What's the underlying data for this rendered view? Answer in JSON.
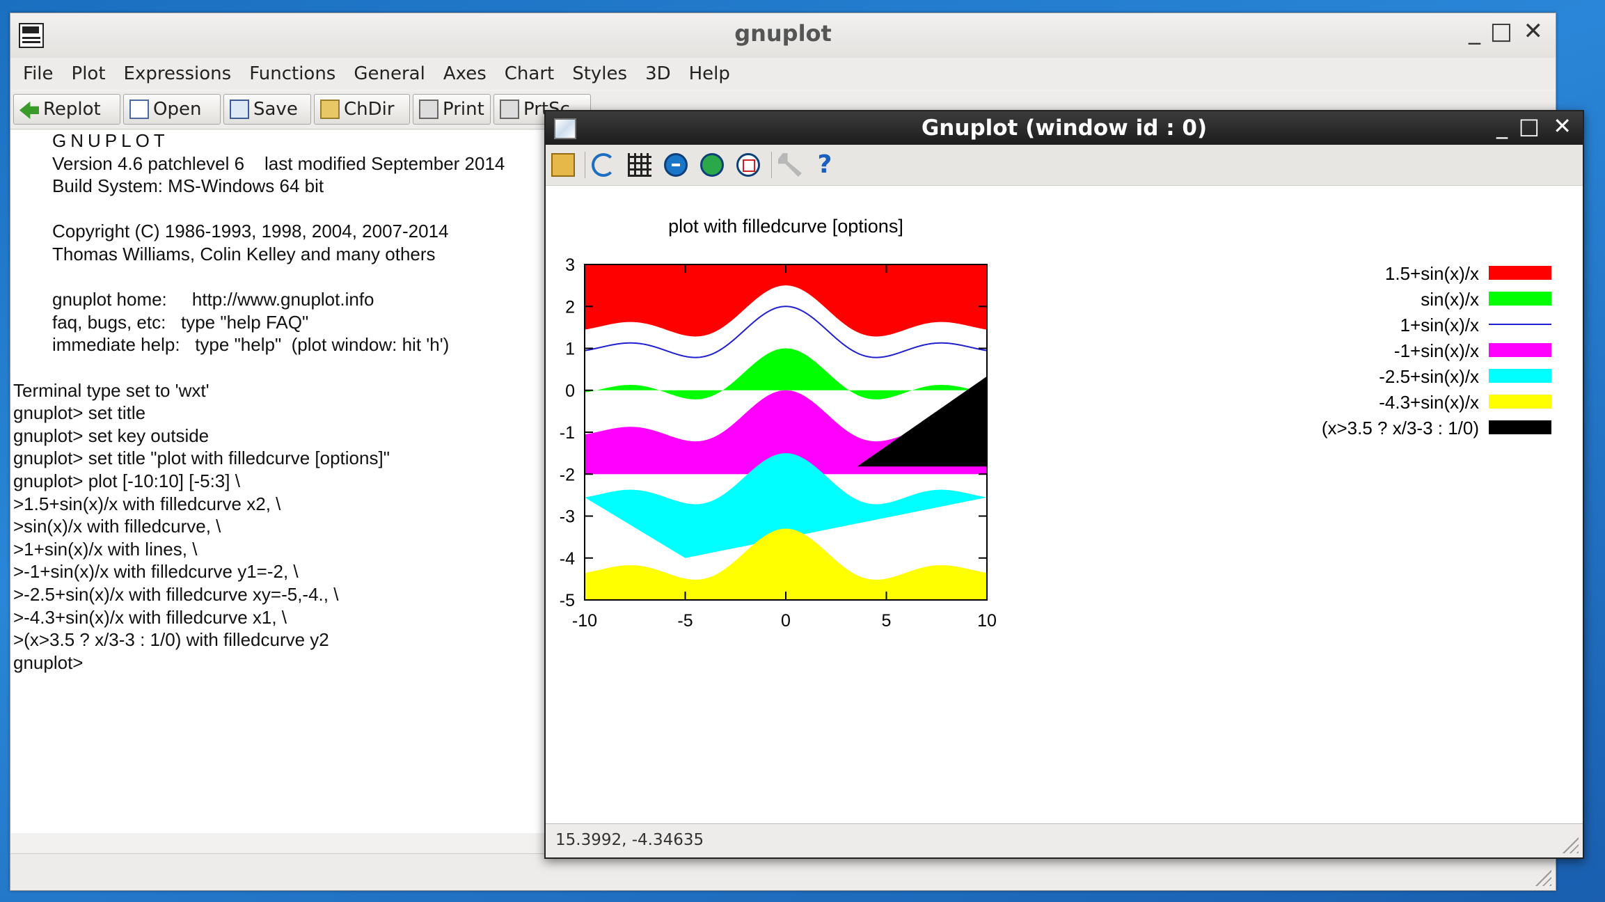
{
  "main_window": {
    "title": "gnuplot",
    "controls": {
      "minimize": "_",
      "maximize": "□",
      "close": "✕"
    },
    "menu": [
      "File",
      "Plot",
      "Expressions",
      "Functions",
      "General",
      "Axes",
      "Chart",
      "Styles",
      "3D",
      "Help"
    ],
    "toolbar": [
      {
        "label": "Replot",
        "icon": "replot-icon"
      },
      {
        "label": "Open",
        "icon": "open-icon"
      },
      {
        "label": "Save",
        "icon": "save-icon"
      },
      {
        "label": "ChDir",
        "icon": "folder-icon"
      },
      {
        "label": "Print",
        "icon": "printer-icon"
      },
      {
        "label": "PrtSc",
        "icon": "printer-icon"
      }
    ],
    "console_lines": [
      "GNUPLOT",
      "Version 4.6 patchlevel 6    last modified September 2014",
      "Build System: MS-Windows 64 bit",
      "",
      "Copyright (C) 1986-1993, 1998, 2004, 2007-2014",
      "Thomas Williams, Colin Kelley and many others",
      "",
      "gnuplot home:     http://www.gnuplot.info",
      "faq, bugs, etc:   type \"help FAQ\"",
      "immediate help:   type \"help\"  (plot window: hit 'h')",
      "",
      "Terminal type set to 'wxt'",
      "gnuplot> set title",
      "gnuplot> set key outside",
      "gnuplot> set title \"plot with filledcurve [options]\"",
      "gnuplot> plot [-10:10] [-5:3] \\",
      ">1.5+sin(x)/x with filledcurve x2, \\",
      ">sin(x)/x with filledcurve, \\",
      ">1+sin(x)/x with lines, \\",
      ">-1+sin(x)/x with filledcurve y1=-2, \\",
      ">-2.5+sin(x)/x with filledcurve xy=-5,-4., \\",
      ">-4.3+sin(x)/x with filledcurve x1, \\",
      ">(x>3.5 ? x/3-3 : 1/0) with filledcurve y2",
      "gnuplot>"
    ]
  },
  "graph_window": {
    "title": "Gnuplot (window id : 0)",
    "controls": {
      "minimize": "_",
      "maximize": "□",
      "close": "✕"
    },
    "toolbar_icons": [
      "copy-icon",
      "replot-icon",
      "grid-icon",
      "unzoom-icon",
      "rezoom-icon",
      "autoscale-icon",
      "options-wrench-icon",
      "help-icon"
    ],
    "status_coords": "15.3992, -4.34635"
  },
  "chart_data": {
    "type": "area",
    "title": "plot with filledcurve [options]",
    "xlabel": "",
    "ylabel": "",
    "xlim": [
      -10,
      10
    ],
    "ylim": [
      -5,
      3
    ],
    "xticks": [
      -10,
      -5,
      0,
      5,
      10
    ],
    "yticks": [
      3,
      2,
      1,
      0,
      -1,
      -2,
      -3,
      -4,
      -5
    ],
    "grid": false,
    "legend_position": "outside-right",
    "series": [
      {
        "name": "1.5+sin(x)/x",
        "offset": 1.5,
        "style": "filledcurve x2",
        "color": "#ff0000"
      },
      {
        "name": "sin(x)/x",
        "offset": 0,
        "style": "filledcurve",
        "color": "#00ff00"
      },
      {
        "name": "1+sin(x)/x",
        "offset": 1,
        "style": "lines",
        "color": "#2020d0"
      },
      {
        "name": "-1+sin(x)/x",
        "offset": -1,
        "style": "filledcurve y1=-2",
        "color": "#ff00ff"
      },
      {
        "name": "-2.5+sin(x)/x",
        "offset": -2.5,
        "style": "filledcurve xy=-5,-4.",
        "color": "#00ffff"
      },
      {
        "name": "-4.3+sin(x)/x",
        "offset": -4.3,
        "style": "filledcurve x1",
        "color": "#ffff00"
      },
      {
        "name": "(x>3.5 ? x/3-3 : 1/0)",
        "offset": null,
        "style": "filledcurve y2",
        "color": "#000000"
      }
    ]
  }
}
